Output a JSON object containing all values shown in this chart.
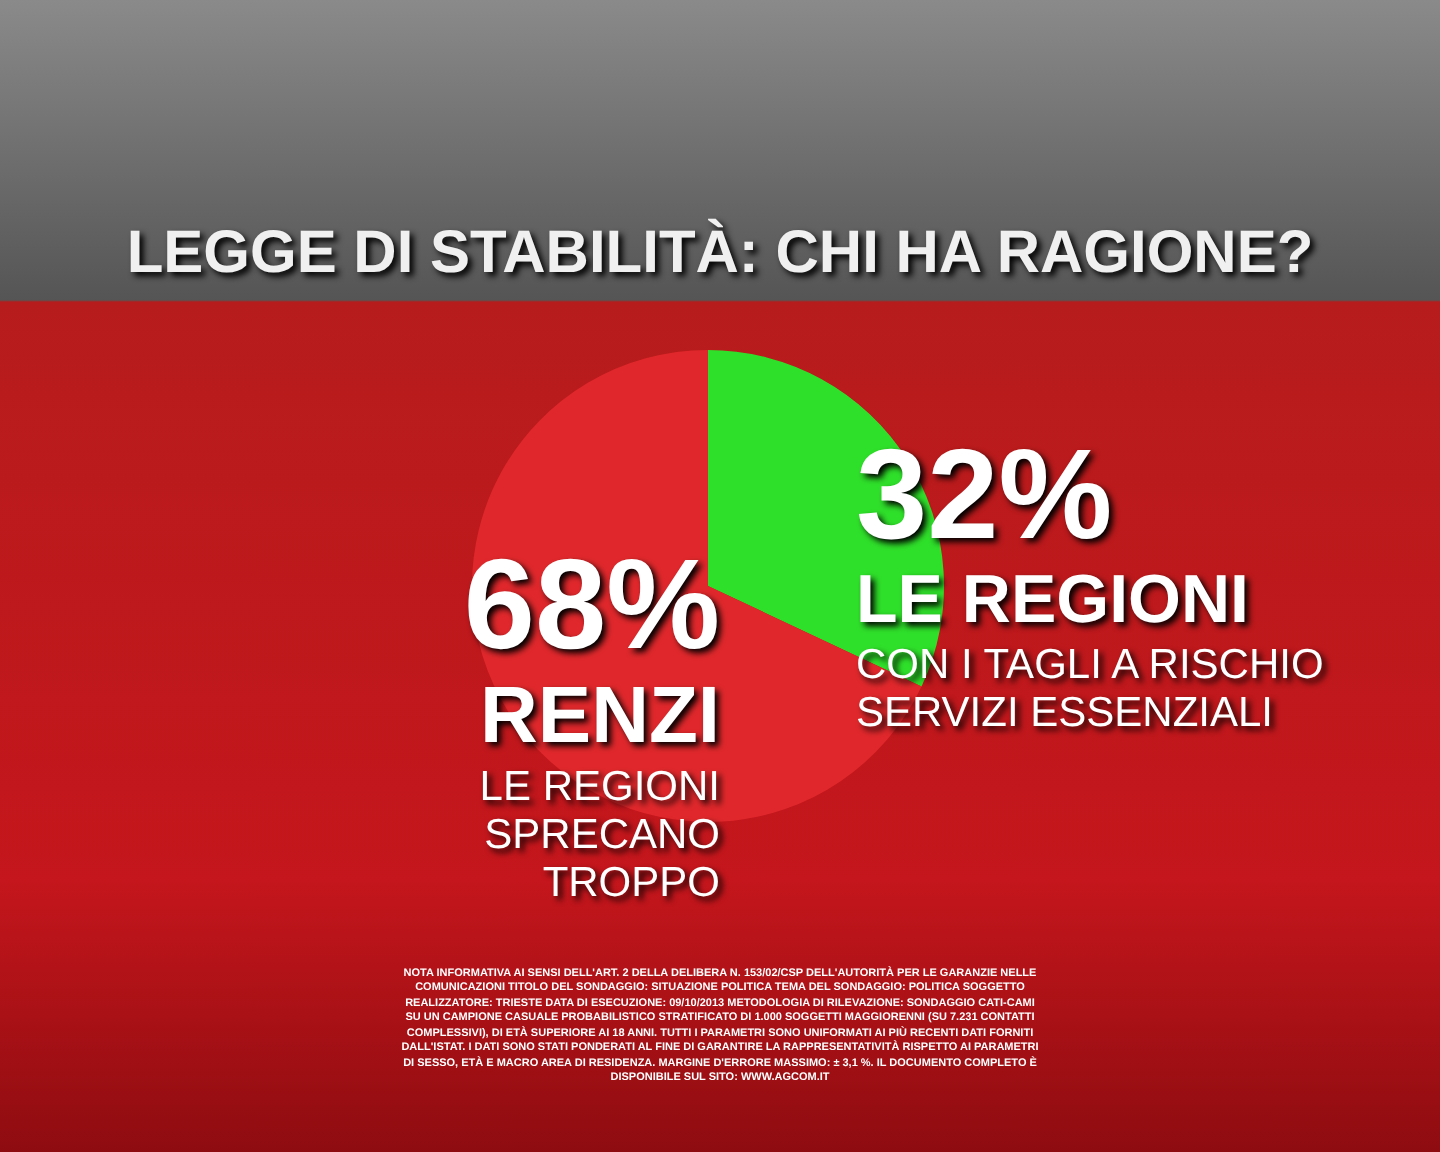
{
  "chart_data": {
    "type": "pie",
    "title": "LEGGE DI STABILITÀ: CHI HA RAGIONE?",
    "categories": [
      "LE REGIONI",
      "RENZI"
    ],
    "values": [
      32,
      68
    ],
    "value_labels": [
      "32%",
      "68%"
    ],
    "colors": [
      "#2fe02a",
      "#e0282c"
    ],
    "annotations": [
      "CON I TAGLI A RISCHIO SERVIZI ESSENZIALI",
      "LE REGIONI SPRECANO TROPPO",
      "NOTA INFORMATIVA AI SENSI DELL'ART. 2 DELLA DELIBERA N. 153/02/CSP DELL'AUTORITÀ PER LE GARANZIE NELLE COMUNICAZIONI TITOLO DEL SONDAGGIO: SITUAZIONE POLITICA TEMA DEL SONDAGGIO: POLITICA SOGGETTO REALIZZATORE: TRIESTE DATA DI ESECUZIONE: 09/10/2013 METODOLOGIA DI RILEVAZIONE: SONDAGGIO CATI-CAMI SU UN CAMPIONE CASUALE PROBABILISTICO STRATIFICATO DI 1.000 SOGGETTI MAGGIORENNI (SU 7.231 CONTATTI COMPLESSIVI), DI ETÀ SUPERIORE AI 18 ANNI. TUTTI I PARAMETRI SONO UNIFORMATI AI PIÙ RECENTI DATI FORNITI DALL'ISTAT. I DATI SONO STATI PONDERATI AL FINE DI GARANTIRE LA RAPPRESENTATIVITÀ RISPETTO AI PARAMETRI DI SESSO, ETÀ E MACRO AREA DI RESIDENZA. MARGINE D'ERRORE MASSIMO: ± 3,1 %. IL DOCUMENTO COMPLETO È DISPONIBILE SUL SITO: WWW.AGCOM.IT"
    ]
  }
}
